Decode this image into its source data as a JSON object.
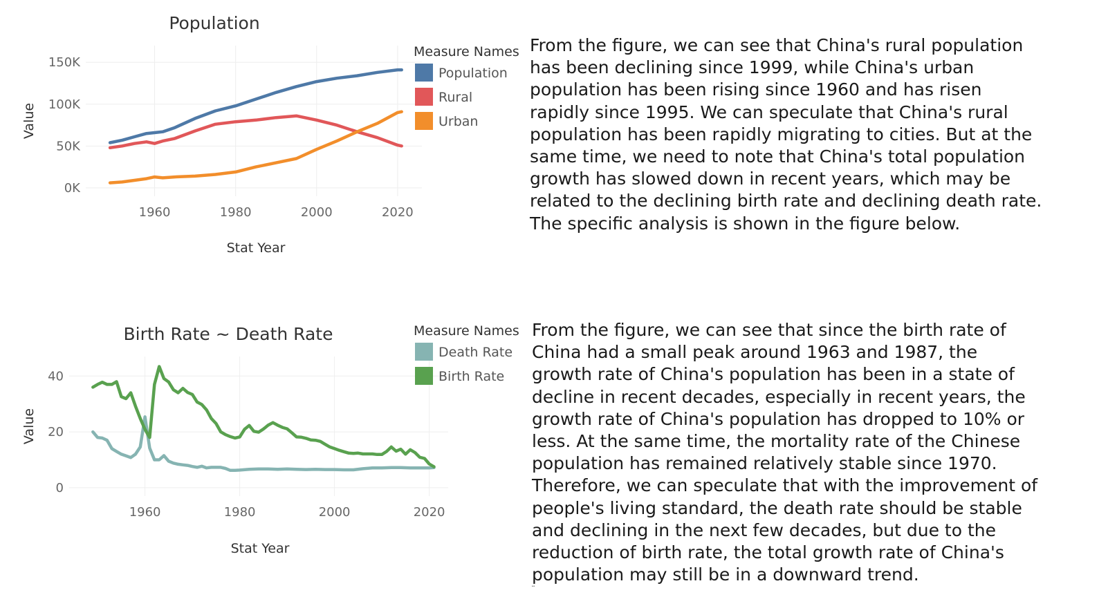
{
  "chart_data": [
    {
      "type": "line",
      "title": "Population",
      "xlabel": "Stat Year",
      "ylabel": "Value",
      "xticks": [
        "1960",
        "1980",
        "2000",
        "2020"
      ],
      "yticks": [
        "0K",
        "50K",
        "100K",
        "150K"
      ],
      "xlim": [
        1943,
        2026
      ],
      "ylim": [
        -10000,
        170000
      ],
      "legend": {
        "title": "Measure Names",
        "position": "right"
      },
      "series": [
        {
          "name": "Population",
          "color": "#4e79a7",
          "x": [
            1949,
            1952,
            1955,
            1958,
            1960,
            1962,
            1965,
            1970,
            1975,
            1980,
            1985,
            1990,
            1995,
            2000,
            2005,
            2010,
            2015,
            2020,
            2021
          ],
          "y": [
            54000,
            57000,
            61000,
            65000,
            66000,
            67000,
            72000,
            83000,
            92000,
            98000,
            106000,
            114000,
            121000,
            127000,
            131000,
            134000,
            138000,
            141000,
            141000
          ]
        },
        {
          "name": "Rural",
          "color": "#e15759",
          "x": [
            1949,
            1952,
            1955,
            1958,
            1960,
            1962,
            1965,
            1970,
            1975,
            1980,
            1985,
            1990,
            1995,
            2000,
            2005,
            2010,
            2015,
            2020,
            2021
          ],
          "y": [
            48000,
            50000,
            53000,
            55000,
            53000,
            56000,
            59000,
            68000,
            76000,
            79000,
            81000,
            84000,
            86000,
            81000,
            75000,
            67000,
            60000,
            51000,
            50000
          ]
        },
        {
          "name": "Urban",
          "color": "#f28e2b",
          "x": [
            1949,
            1952,
            1955,
            1958,
            1960,
            1962,
            1965,
            1970,
            1975,
            1980,
            1985,
            1990,
            1995,
            2000,
            2005,
            2010,
            2015,
            2020,
            2021
          ],
          "y": [
            6000,
            7000,
            9000,
            11000,
            13000,
            12000,
            13000,
            14000,
            16000,
            19000,
            25000,
            30000,
            35000,
            46000,
            56000,
            67000,
            77000,
            90000,
            91000
          ]
        }
      ]
    },
    {
      "type": "line",
      "title": "Birth Rate ~ Death Rate",
      "xlabel": "Stat Year",
      "ylabel": "Value",
      "xticks": [
        "1960",
        "1980",
        "2000",
        "2020"
      ],
      "yticks": [
        "0",
        "20",
        "40"
      ],
      "xlim": [
        1944,
        2024
      ],
      "ylim": [
        -3,
        47
      ],
      "legend": {
        "title": "Measure Names",
        "position": "right"
      },
      "series": [
        {
          "name": "Death Rate",
          "color": "#86b4b2",
          "x": [
            1949,
            1950,
            1951,
            1952,
            1953,
            1954,
            1955,
            1956,
            1957,
            1958,
            1959,
            1960,
            1961,
            1962,
            1963,
            1964,
            1965,
            1966,
            1967,
            1968,
            1969,
            1970,
            1971,
            1972,
            1973,
            1974,
            1975,
            1976,
            1977,
            1978,
            1979,
            1980,
            1982,
            1984,
            1986,
            1988,
            1990,
            1992,
            1994,
            1996,
            1998,
            2000,
            2002,
            2004,
            2006,
            2008,
            2010,
            2012,
            2014,
            2016,
            2018,
            2020,
            2021
          ],
          "y": [
            20,
            18,
            17.8,
            17,
            14,
            13,
            12,
            11.4,
            10.8,
            12,
            14.6,
            25.4,
            14.2,
            10,
            10,
            11.5,
            9.5,
            8.8,
            8.4,
            8.2,
            8,
            7.6,
            7.3,
            7.7,
            7.1,
            7.3,
            7.3,
            7.3,
            6.9,
            6.2,
            6.2,
            6.3,
            6.6,
            6.7,
            6.7,
            6.6,
            6.7,
            6.6,
            6.5,
            6.6,
            6.5,
            6.5,
            6.4,
            6.4,
            6.8,
            7.1,
            7.1,
            7.2,
            7.2,
            7.1,
            7.1,
            7.1,
            7.2
          ]
        },
        {
          "name": "Birth Rate",
          "color": "#59a14f",
          "x": [
            1949,
            1950,
            1951,
            1952,
            1953,
            1954,
            1955,
            1956,
            1957,
            1958,
            1959,
            1960,
            1961,
            1962,
            1963,
            1964,
            1965,
            1966,
            1967,
            1968,
            1969,
            1970,
            1971,
            1972,
            1973,
            1974,
            1975,
            1976,
            1977,
            1978,
            1979,
            1980,
            1981,
            1982,
            1983,
            1984,
            1985,
            1986,
            1987,
            1988,
            1989,
            1990,
            1991,
            1992,
            1993,
            1994,
            1995,
            1996,
            1997,
            1998,
            1999,
            2000,
            2001,
            2002,
            2003,
            2004,
            2005,
            2006,
            2007,
            2008,
            2009,
            2010,
            2011,
            2012,
            2013,
            2014,
            2015,
            2016,
            2017,
            2018,
            2019,
            2020,
            2021
          ],
          "y": [
            36,
            37,
            37.8,
            37,
            37,
            38,
            32.6,
            31.9,
            34,
            29.2,
            24.8,
            20.9,
            18,
            37,
            43.4,
            39.1,
            37.9,
            35.1,
            34,
            35.6,
            34.1,
            33.4,
            30.7,
            29.8,
            27.9,
            24.8,
            23,
            20,
            19,
            18.3,
            17.8,
            18.2,
            20.9,
            22.3,
            20.2,
            19.9,
            21,
            22.4,
            23.3,
            22.4,
            21.6,
            21.1,
            19.7,
            18.2,
            18.1,
            17.7,
            17.1,
            17,
            16.6,
            15.6,
            14.6,
            14,
            13.4,
            12.9,
            12.4,
            12.3,
            12.4,
            12.1,
            12.1,
            12.1,
            11.9,
            11.9,
            13,
            14.6,
            13.1,
            13.8,
            12,
            13.6,
            12.6,
            10.9,
            10.5,
            8.5,
            7.5
          ]
        }
      ]
    }
  ],
  "text": {
    "para1": "From the figure, we can see that China's rural population\nhas been declining since 1999, while China's urban\npopulation has been rising since 1960 and has risen\nrapidly since 1995. We can speculate that China's rural\npopulation has been rapidly migrating to cities. But at the\nsame time, we need to note that China's total population\ngrowth has slowed down in recent years, which may be\nrelated to the declining birth rate and declining death rate.\nThe specific analysis is shown in the figure below.",
    "para2": "From the figure, we can see that since the birth rate of\nChina had a small peak around 1963 and 1987, the\ngrowth rate of China's population has been in a state of\ndecline in recent decades, especially in recent years, the\ngrowth rate of China's population has dropped to 10% or\nless. At the same time, the mortality rate of the Chinese\npopulation has remained relatively stable since 1970.\nTherefore, we can speculate that with the improvement of\npeople's living standard, the death rate should be stable\nand declining in the next few decades, but due to the\nreduction of birth rate, the total growth rate of China's\npopulation may still be in a downward trend.",
    "footnote": "¨"
  }
}
